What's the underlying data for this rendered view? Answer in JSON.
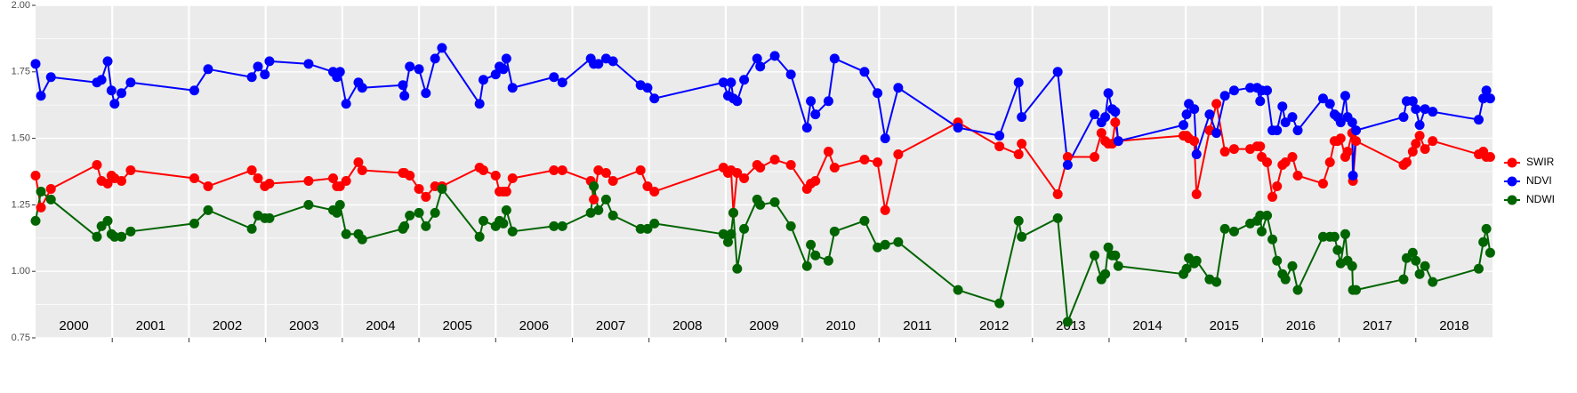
{
  "chart_data": {
    "type": "line",
    "xlim": [
      2000,
      2019
    ],
    "year_labels": [
      "2000",
      "2001",
      "2002",
      "2003",
      "2004",
      "2005",
      "2006",
      "2007",
      "2008",
      "2009",
      "2010",
      "2011",
      "2012",
      "2013",
      "2014",
      "2015",
      "2016",
      "2017",
      "2018"
    ],
    "ylim": [
      0.75,
      2.0
    ],
    "yticks": [
      {
        "value": 0.75,
        "label": "0.75"
      },
      {
        "value": 1.0,
        "label": "1.00"
      },
      {
        "value": 1.25,
        "label": "1.25"
      },
      {
        "value": 1.5,
        "label": "1.50"
      },
      {
        "value": 1.75,
        "label": "1.75"
      },
      {
        "value": 2.0,
        "label": "2.00"
      }
    ],
    "grid": true,
    "legend": "right",
    "x": [
      2000.0,
      2000.07,
      2000.2,
      2000.8,
      2000.86,
      2000.94,
      2000.99,
      2001.03,
      2001.12,
      2001.24,
      2002.07,
      2002.25,
      2002.82,
      2002.9,
      2002.99,
      2003.05,
      2003.56,
      2003.88,
      2003.93,
      2003.97,
      2004.05,
      2004.21,
      2004.26,
      2004.79,
      2004.81,
      2004.88,
      2005.0,
      2005.09,
      2005.21,
      2005.3,
      2005.79,
      2005.84,
      2006.0,
      2006.05,
      2006.1,
      2006.14,
      2006.22,
      2006.76,
      2006.87,
      2007.24,
      2007.28,
      2007.34,
      2007.44,
      2007.53,
      2007.89,
      2007.98,
      2008.07,
      2008.97,
      2009.03,
      2009.07,
      2009.1,
      2009.15,
      2009.24,
      2009.41,
      2009.45,
      2009.64,
      2009.85,
      2010.06,
      2010.11,
      2010.17,
      2010.34,
      2010.42,
      2010.81,
      2010.98,
      2011.08,
      2011.25,
      2012.03,
      2012.57,
      2012.82,
      2012.86,
      2013.33,
      2013.46,
      2013.81,
      2013.9,
      2013.95,
      2013.99,
      2014.04,
      2014.08,
      2014.12,
      2014.97,
      2015.01,
      2015.04,
      2015.11,
      2015.14,
      2015.31,
      2015.4,
      2015.51,
      2015.63,
      2015.84,
      2015.93,
      2015.97,
      2015.99,
      2016.06,
      2016.13,
      2016.19,
      2016.26,
      2016.3,
      2016.39,
      2016.46,
      2016.79,
      2016.88,
      2016.94,
      2016.98,
      2017.02,
      2017.08,
      2017.11,
      2017.17,
      2017.18,
      2017.22,
      2017.84,
      2017.88,
      2017.96,
      2018.0,
      2018.05,
      2018.12,
      2018.22,
      2018.82,
      2018.88,
      2018.92,
      2018.97
    ],
    "series": [
      {
        "name": "SWIR",
        "color": "#ff0000",
        "values": [
          1.36,
          1.24,
          1.31,
          1.4,
          1.34,
          1.33,
          1.36,
          1.35,
          1.34,
          1.38,
          1.35,
          1.32,
          1.38,
          1.35,
          1.32,
          1.33,
          1.34,
          1.35,
          1.32,
          1.32,
          1.34,
          1.41,
          1.38,
          1.37,
          1.37,
          1.36,
          1.31,
          1.28,
          1.32,
          1.32,
          1.39,
          1.38,
          1.36,
          1.3,
          1.3,
          1.3,
          1.35,
          1.38,
          1.38,
          1.34,
          1.27,
          1.38,
          1.37,
          1.34,
          1.38,
          1.32,
          1.3,
          1.39,
          1.37,
          1.38,
          1.22,
          1.37,
          1.35,
          1.4,
          1.39,
          1.42,
          1.4,
          1.31,
          1.33,
          1.34,
          1.45,
          1.39,
          1.42,
          1.41,
          1.23,
          1.44,
          1.56,
          1.47,
          1.44,
          1.48,
          1.29,
          1.43,
          1.43,
          1.52,
          1.49,
          1.48,
          1.48,
          1.56,
          1.49,
          1.51,
          1.51,
          1.5,
          1.49,
          1.29,
          1.53,
          1.63,
          1.45,
          1.46,
          1.46,
          1.47,
          1.47,
          1.43,
          1.41,
          1.28,
          1.32,
          1.4,
          1.41,
          1.43,
          1.36,
          1.33,
          1.41,
          1.49,
          1.49,
          1.5,
          1.43,
          1.45,
          1.52,
          1.34,
          1.49,
          1.4,
          1.41,
          1.45,
          1.48,
          1.51,
          1.46,
          1.49,
          1.44,
          1.45,
          1.43,
          1.43
        ]
      },
      {
        "name": "NDVI",
        "color": "#0000ff",
        "values": [
          1.78,
          1.66,
          1.73,
          1.71,
          1.72,
          1.79,
          1.68,
          1.63,
          1.67,
          1.71,
          1.68,
          1.76,
          1.73,
          1.77,
          1.74,
          1.79,
          1.78,
          1.75,
          1.73,
          1.75,
          1.63,
          1.71,
          1.69,
          1.7,
          1.66,
          1.77,
          1.76,
          1.67,
          1.8,
          1.84,
          1.63,
          1.72,
          1.74,
          1.77,
          1.76,
          1.8,
          1.69,
          1.73,
          1.71,
          1.8,
          1.78,
          1.78,
          1.8,
          1.79,
          1.7,
          1.69,
          1.65,
          1.71,
          1.66,
          1.71,
          1.65,
          1.64,
          1.72,
          1.8,
          1.77,
          1.81,
          1.74,
          1.54,
          1.64,
          1.59,
          1.64,
          1.8,
          1.75,
          1.67,
          1.5,
          1.69,
          1.54,
          1.51,
          1.71,
          1.58,
          1.75,
          1.4,
          1.59,
          1.56,
          1.58,
          1.67,
          1.61,
          1.6,
          1.49,
          1.55,
          1.59,
          1.63,
          1.61,
          1.44,
          1.59,
          1.52,
          1.66,
          1.68,
          1.69,
          1.69,
          1.64,
          1.68,
          1.68,
          1.53,
          1.53,
          1.62,
          1.56,
          1.58,
          1.53,
          1.65,
          1.63,
          1.59,
          1.58,
          1.56,
          1.66,
          1.58,
          1.56,
          1.36,
          1.53,
          1.58,
          1.64,
          1.64,
          1.61,
          1.55,
          1.61,
          1.6,
          1.57,
          1.65,
          1.68,
          1.65
        ]
      },
      {
        "name": "NDWI",
        "color": "#006400",
        "values": [
          1.19,
          1.3,
          1.27,
          1.13,
          1.17,
          1.19,
          1.14,
          1.13,
          1.13,
          1.15,
          1.18,
          1.23,
          1.16,
          1.21,
          1.2,
          1.2,
          1.25,
          1.23,
          1.22,
          1.25,
          1.14,
          1.14,
          1.12,
          1.16,
          1.17,
          1.21,
          1.22,
          1.17,
          1.22,
          1.31,
          1.13,
          1.19,
          1.17,
          1.19,
          1.18,
          1.23,
          1.15,
          1.17,
          1.17,
          1.22,
          1.32,
          1.23,
          1.27,
          1.21,
          1.16,
          1.16,
          1.18,
          1.14,
          1.11,
          1.14,
          1.22,
          1.01,
          1.16,
          1.27,
          1.25,
          1.26,
          1.17,
          1.02,
          1.1,
          1.06,
          1.04,
          1.15,
          1.19,
          1.09,
          1.1,
          1.11,
          0.93,
          0.88,
          1.19,
          1.13,
          1.2,
          0.81,
          1.06,
          0.97,
          0.99,
          1.09,
          1.06,
          1.06,
          1.02,
          0.99,
          1.01,
          1.05,
          1.03,
          1.04,
          0.97,
          0.96,
          1.16,
          1.15,
          1.18,
          1.19,
          1.21,
          1.15,
          1.21,
          1.12,
          1.04,
          0.99,
          0.97,
          1.02,
          0.93,
          1.13,
          1.13,
          1.13,
          1.08,
          1.03,
          1.14,
          1.04,
          1.02,
          0.93,
          0.93,
          0.97,
          1.05,
          1.07,
          1.04,
          0.99,
          1.02,
          0.96,
          1.01,
          1.11,
          1.16,
          1.07
        ]
      }
    ]
  }
}
